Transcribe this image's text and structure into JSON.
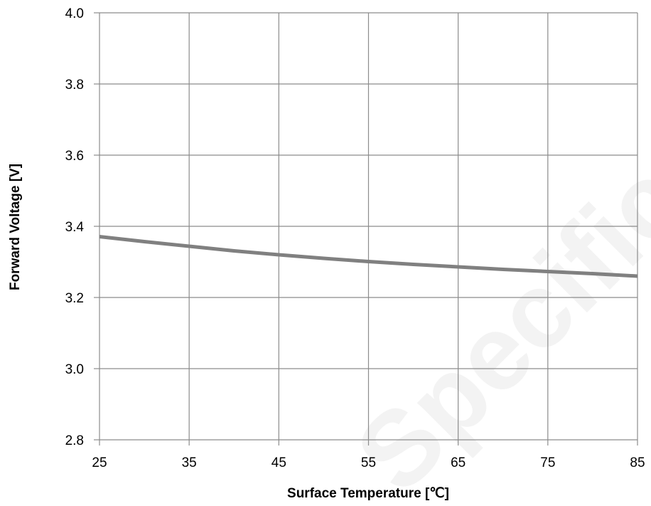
{
  "chart_data": {
    "type": "line",
    "title": "",
    "xlabel": "Surface Temperature [℃]",
    "ylabel": "Forward Voltage [V]",
    "xlim": [
      25,
      85
    ],
    "ylim": [
      2.8,
      4.0
    ],
    "x_ticks": [
      25,
      35,
      45,
      55,
      65,
      75,
      85
    ],
    "y_ticks": [
      "2.8",
      "3.0",
      "3.2",
      "3.4",
      "3.6",
      "3.8",
      "4.0"
    ],
    "grid": true,
    "series": [
      {
        "x": [
          25,
          30,
          35,
          40,
          45,
          50,
          55,
          60,
          65,
          70,
          75,
          80,
          85
        ],
        "y": [
          3.371,
          3.357,
          3.344,
          3.331,
          3.32,
          3.31,
          3.301,
          3.293,
          3.286,
          3.279,
          3.273,
          3.267,
          3.26
        ]
      }
    ],
    "colors": {
      "line": "#808080",
      "grid": "#8c8c8c"
    }
  },
  "watermark": "Specification"
}
